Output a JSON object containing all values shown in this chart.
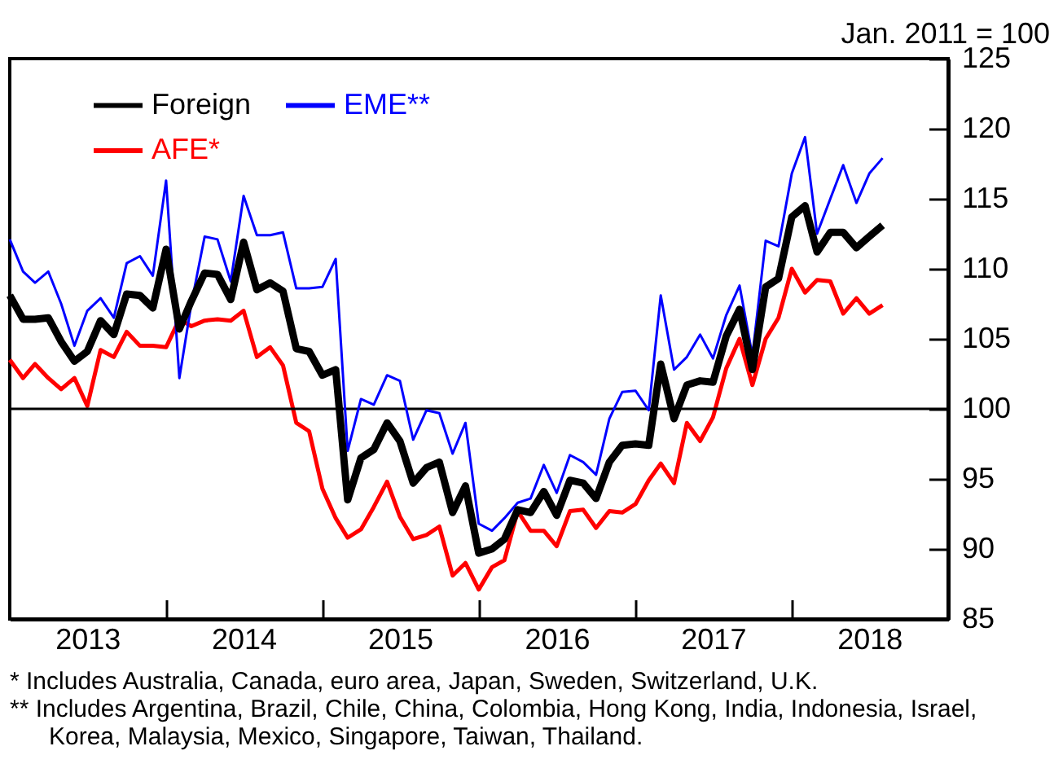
{
  "chart_data": {
    "type": "line",
    "ylabel": "Jan. 2011 = 100",
    "x": [
      "2013-01",
      "2013-02",
      "2013-03",
      "2013-04",
      "2013-05",
      "2013-06",
      "2013-07",
      "2013-08",
      "2013-09",
      "2013-10",
      "2013-11",
      "2013-12",
      "2014-01",
      "2014-02",
      "2014-03",
      "2014-04",
      "2014-05",
      "2014-06",
      "2014-07",
      "2014-08",
      "2014-09",
      "2014-10",
      "2014-11",
      "2014-12",
      "2015-01",
      "2015-02",
      "2015-03",
      "2015-04",
      "2015-05",
      "2015-06",
      "2015-07",
      "2015-08",
      "2015-09",
      "2015-10",
      "2015-11",
      "2015-12",
      "2016-01",
      "2016-02",
      "2016-03",
      "2016-04",
      "2016-05",
      "2016-06",
      "2016-07",
      "2016-08",
      "2016-09",
      "2016-10",
      "2016-11",
      "2016-12",
      "2017-01",
      "2017-02",
      "2017-03",
      "2017-04",
      "2017-05",
      "2017-06",
      "2017-07",
      "2017-08",
      "2017-09",
      "2017-10",
      "2017-11",
      "2017-12",
      "2018-01",
      "2018-02",
      "2018-03",
      "2018-04",
      "2018-05",
      "2018-06",
      "2018-07",
      "2018-08"
    ],
    "series": [
      {
        "name": "Foreign",
        "color": "#000000",
        "values": [
          108.1,
          106.4,
          106.4,
          106.5,
          104.8,
          103.4,
          104.1,
          106.3,
          105.3,
          108.2,
          108.1,
          107.2,
          111.4,
          105.7,
          107.7,
          109.7,
          109.6,
          107.8,
          111.9,
          108.5,
          109.0,
          108.4,
          104.3,
          104.1,
          102.4,
          102.8,
          93.5,
          96.5,
          97.1,
          99.0,
          97.7,
          94.7,
          95.8,
          96.2,
          92.6,
          94.5,
          89.7,
          90.0,
          90.7,
          92.8,
          92.6,
          94.1,
          92.4,
          94.9,
          94.7,
          93.6,
          96.2,
          97.4,
          97.5,
          97.4,
          103.2,
          99.3,
          101.7,
          102.0,
          101.9,
          105.2,
          107.1,
          102.8,
          108.7,
          109.3,
          113.7,
          114.5,
          111.2,
          112.6,
          112.6,
          111.5,
          112.3,
          113.1
        ]
      },
      {
        "name": "EME**",
        "color": "#0000ff",
        "values": [
          112.1,
          109.8,
          109.0,
          109.8,
          107.5,
          104.5,
          107.0,
          107.9,
          106.5,
          110.4,
          110.9,
          109.5,
          116.3,
          102.2,
          107.5,
          112.3,
          112.1,
          109.1,
          115.2,
          112.4,
          112.4,
          112.6,
          108.6,
          108.6,
          108.7,
          110.7,
          97.0,
          100.7,
          100.3,
          102.4,
          102.0,
          97.8,
          99.9,
          99.7,
          96.8,
          99.0,
          91.8,
          91.3,
          92.2,
          93.3,
          93.6,
          96.0,
          94.0,
          96.7,
          96.2,
          95.3,
          99.3,
          101.2,
          101.3,
          99.9,
          108.1,
          102.8,
          103.7,
          105.3,
          103.6,
          106.7,
          108.8,
          103.8,
          112.0,
          111.6,
          116.8,
          119.4,
          112.5,
          115.0,
          117.4,
          114.7,
          116.8,
          117.9
        ]
      },
      {
        "name": "AFE*",
        "color": "#ff0000",
        "values": [
          103.5,
          102.2,
          103.2,
          102.2,
          101.4,
          102.2,
          100.2,
          104.2,
          103.7,
          105.5,
          104.5,
          104.5,
          104.4,
          106.4,
          105.9,
          106.3,
          106.4,
          106.3,
          107.0,
          103.7,
          104.4,
          103.1,
          99.0,
          98.4,
          94.3,
          92.2,
          90.8,
          91.4,
          93.0,
          94.8,
          92.3,
          90.7,
          91.0,
          91.6,
          88.1,
          89.0,
          87.1,
          88.7,
          89.2,
          92.7,
          91.3,
          91.3,
          90.2,
          92.7,
          92.8,
          91.5,
          92.7,
          92.6,
          93.2,
          94.9,
          96.1,
          94.7,
          99.0,
          97.7,
          99.4,
          102.9,
          105.0,
          101.7,
          105.0,
          106.5,
          110.0,
          108.3,
          109.2,
          109.1,
          106.8,
          107.9,
          106.8,
          107.4
        ]
      }
    ],
    "xlim": [
      "2013-01",
      "2019-01"
    ],
    "xticks": [
      {
        "value": "2013-07",
        "label": "2013"
      },
      {
        "value": "2014-01",
        "label": null
      },
      {
        "value": "2014-07",
        "label": "2014"
      },
      {
        "value": "2015-01",
        "label": null
      },
      {
        "value": "2015-07",
        "label": "2015"
      },
      {
        "value": "2016-01",
        "label": null
      },
      {
        "value": "2016-07",
        "label": "2016"
      },
      {
        "value": "2017-01",
        "label": null
      },
      {
        "value": "2017-07",
        "label": "2017"
      },
      {
        "value": "2018-01",
        "label": null
      },
      {
        "value": "2018-07",
        "label": "2018"
      }
    ],
    "ylim": [
      85,
      125
    ],
    "yticks": [
      85,
      90,
      95,
      100,
      105,
      110,
      115,
      120,
      125
    ],
    "ref_lines": [
      {
        "axis": "y",
        "value": 100,
        "color": "#000000"
      }
    ],
    "legend": "top left",
    "annotations": [
      "* Includes Australia, Canada, euro area, Japan, Sweden, Switzerland, U.K.",
      "** Includes Argentina, Brazil, Chile, China, Colombia, Hong Kong, India, Indonesia, Israel, Korea, Malaysia, Mexico, Singapore, Taiwan, Thailand."
    ]
  }
}
